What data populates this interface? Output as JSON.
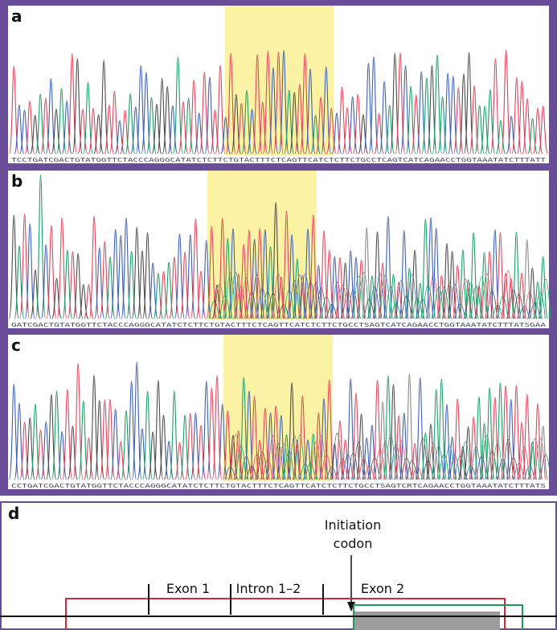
{
  "panels": [
    {
      "label": "a",
      "sequence": "TCCTGATCGACTGTATGGTTCTACCCAGGGCATATCTCTTCTGTACTTTCTCAGTTCATCTCTTCTGCCTCAGTCATCAGAACCTGGTAAATATCTTTATT"
    },
    {
      "label": "b",
      "sequence": "GATCGACTGTATGGTTCTACCCAGGGCATATCTCTTCTGTACTTTCTCAGTTCATCTCTTCTGCCTSAGTCATCAGAACCTGGTAAATATCTTTATSGAA"
    },
    {
      "label": "c",
      "sequence": "CCTGATCGACTGTATGGTTCTACCCAGGGCATATCTCTTCTGTACTTTCTCAGTTCATCTCTTCTGCCTSAGTCRTCAGAACCTGGTAAATATCTTTATS"
    }
  ],
  "diagram": {
    "label": "d",
    "annotation": [
      "Initiation",
      "codon"
    ],
    "regions": [
      "Exon 1",
      "Intron 1–2",
      "Exon 2"
    ]
  }
}
